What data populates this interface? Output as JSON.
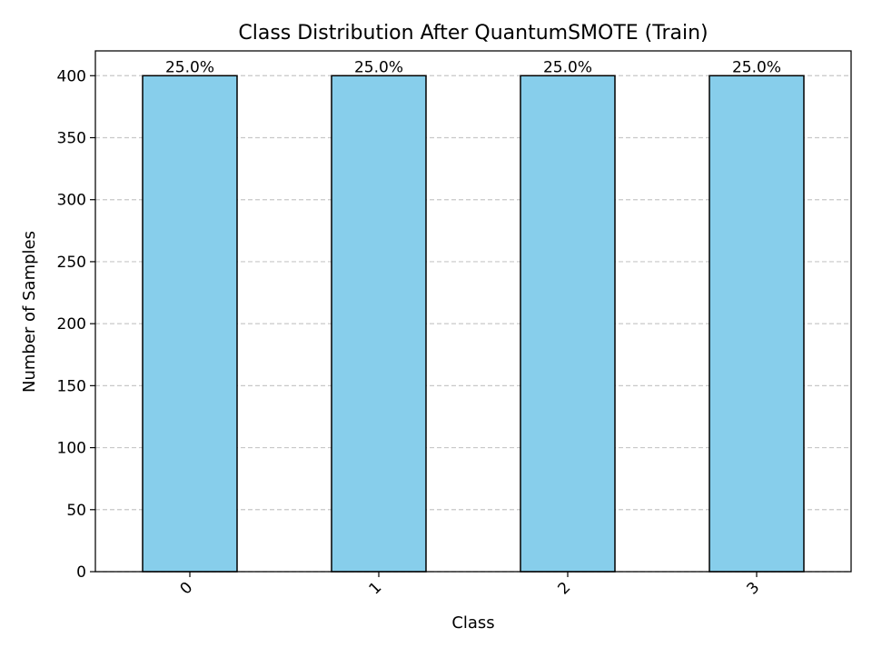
{
  "chart_data": {
    "type": "bar",
    "title": "Class Distribution After QuantumSMOTE (Train)",
    "xlabel": "Class",
    "ylabel": "Number of Samples",
    "categories": [
      "0",
      "1",
      "2",
      "3"
    ],
    "values": [
      400,
      400,
      400,
      400
    ],
    "data_labels": [
      "25.0%",
      "25.0%",
      "25.0%",
      "25.0%"
    ],
    "ylim": [
      0,
      420
    ],
    "yticks": [
      0,
      50,
      100,
      150,
      200,
      250,
      300,
      350,
      400
    ],
    "ytick_labels": [
      "0",
      "50",
      "100",
      "150",
      "200",
      "250",
      "300",
      "350",
      "400"
    ],
    "grid": {
      "axis": "y",
      "style": "dashed"
    },
    "colors": {
      "bar_fill": "#87ceeb",
      "bar_edge": "#000000",
      "grid": "#c8c8c8"
    }
  }
}
